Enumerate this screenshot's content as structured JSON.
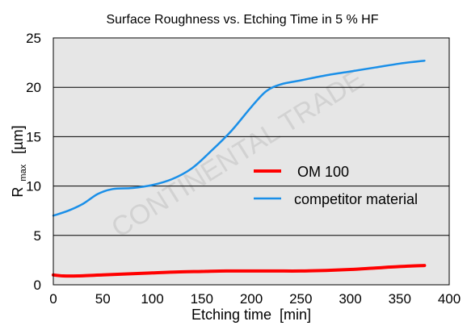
{
  "chart_data": {
    "type": "line",
    "title": "Surface Roughness vs. Etching Time in 5 % HF",
    "xlabel": "Etching time  [min]",
    "ylabel_main": "R",
    "ylabel_sub": "max",
    "ylabel_unit": "[µm]",
    "xlim": [
      0,
      400
    ],
    "ylim": [
      0,
      25
    ],
    "x_ticks": [
      "0",
      "50",
      "100",
      "150",
      "200",
      "250",
      "300",
      "350",
      "400"
    ],
    "y_ticks": [
      "0",
      "5",
      "10",
      "15",
      "20",
      "25"
    ],
    "grid": "horizontal",
    "legend_position": "center-right",
    "watermark": "CONTINENTAL TRADE",
    "series": [
      {
        "name": "OM 100",
        "color": "#ff0000",
        "points": [
          [
            0,
            1.0
          ],
          [
            10,
            0.9
          ],
          [
            25,
            0.9
          ],
          [
            50,
            1.0
          ],
          [
            75,
            1.1
          ],
          [
            100,
            1.2
          ],
          [
            125,
            1.3
          ],
          [
            150,
            1.35
          ],
          [
            175,
            1.4
          ],
          [
            200,
            1.4
          ],
          [
            225,
            1.4
          ],
          [
            250,
            1.4
          ],
          [
            275,
            1.45
          ],
          [
            300,
            1.55
          ],
          [
            325,
            1.7
          ],
          [
            350,
            1.85
          ],
          [
            375,
            1.95
          ]
        ]
      },
      {
        "name": "competitor material",
        "color": "#1a8fe8",
        "points": [
          [
            0,
            7.0
          ],
          [
            15,
            7.5
          ],
          [
            30,
            8.2
          ],
          [
            45,
            9.2
          ],
          [
            60,
            9.7
          ],
          [
            80,
            9.8
          ],
          [
            100,
            10.1
          ],
          [
            120,
            10.7
          ],
          [
            140,
            11.8
          ],
          [
            160,
            13.6
          ],
          [
            180,
            15.6
          ],
          [
            200,
            18.0
          ],
          [
            215,
            19.6
          ],
          [
            230,
            20.3
          ],
          [
            250,
            20.7
          ],
          [
            275,
            21.2
          ],
          [
            300,
            21.6
          ],
          [
            325,
            22.0
          ],
          [
            350,
            22.4
          ],
          [
            375,
            22.7
          ]
        ]
      }
    ]
  },
  "colors": {
    "plot_background": "#e6e6e6",
    "gridline": "#000000",
    "axis_text": "#000000"
  }
}
